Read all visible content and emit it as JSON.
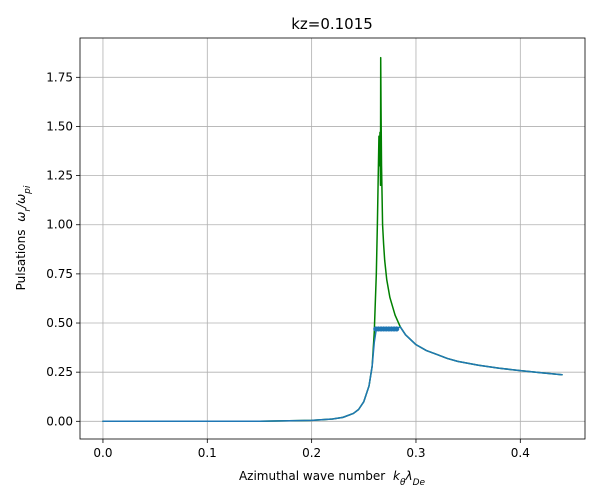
{
  "chart_data": {
    "type": "line",
    "title": "kz=0.1015",
    "xlabel": "Azimuthal wave number",
    "xlabel_math": "kθλDe",
    "ylabel": "Pulsations",
    "ylabel_math": "ωr/ωpi",
    "xlim": [
      -0.022,
      0.462
    ],
    "ylim": [
      -0.09,
      1.95
    ],
    "grid": true,
    "xticks": [
      0.0,
      0.1,
      0.2,
      0.3,
      0.4
    ],
    "xtick_labels": [
      "0.0",
      "0.1",
      "0.2",
      "0.3",
      "0.4"
    ],
    "yticks": [
      0.0,
      0.25,
      0.5,
      0.75,
      1.0,
      1.25,
      1.5,
      1.75
    ],
    "ytick_labels": [
      "0.00",
      "0.25",
      "0.50",
      "0.75",
      "1.00",
      "1.25",
      "1.50",
      "1.75"
    ],
    "series": [
      {
        "color": "#008000",
        "style": "line",
        "x": [
          0.0,
          0.05,
          0.1,
          0.15,
          0.2,
          0.22,
          0.23,
          0.24,
          0.245,
          0.25,
          0.255,
          0.258,
          0.26,
          0.262,
          0.263,
          0.264,
          0.2645,
          0.265,
          0.2655,
          0.266,
          0.2662,
          0.2665,
          0.267,
          0.2675,
          0.268,
          0.269,
          0.27,
          0.272,
          0.275,
          0.28,
          0.285,
          0.29,
          0.3,
          0.31,
          0.32,
          0.33,
          0.34,
          0.36,
          0.38,
          0.4,
          0.42,
          0.44
        ],
        "y": [
          0.0,
          0.0,
          0.0,
          0.0,
          0.005,
          0.012,
          0.02,
          0.04,
          0.06,
          0.1,
          0.18,
          0.28,
          0.45,
          0.75,
          1.0,
          1.3,
          1.45,
          1.3,
          1.47,
          1.2,
          1.85,
          1.6,
          1.3,
          1.15,
          1.0,
          0.9,
          0.82,
          0.72,
          0.63,
          0.54,
          0.48,
          0.44,
          0.39,
          0.36,
          0.34,
          0.32,
          0.305,
          0.285,
          0.27,
          0.258,
          0.247,
          0.237
        ]
      },
      {
        "color": "#1f77b4",
        "style": "line",
        "x": [
          0.0,
          0.05,
          0.1,
          0.15,
          0.2,
          0.22,
          0.23,
          0.24,
          0.245,
          0.25,
          0.255,
          0.258,
          0.26,
          0.262,
          0.264,
          0.266,
          0.268,
          0.27,
          0.272,
          0.275,
          0.278,
          0.28,
          0.282,
          0.285,
          0.29,
          0.3,
          0.31,
          0.32,
          0.33,
          0.34,
          0.36,
          0.38,
          0.4,
          0.42,
          0.44
        ],
        "y": [
          0.0,
          0.0,
          0.0,
          0.0,
          0.005,
          0.012,
          0.02,
          0.04,
          0.06,
          0.1,
          0.18,
          0.28,
          0.4,
          0.47,
          0.47,
          0.47,
          0.47,
          0.47,
          0.47,
          0.47,
          0.47,
          0.47,
          0.475,
          0.48,
          0.44,
          0.39,
          0.36,
          0.34,
          0.32,
          0.305,
          0.285,
          0.27,
          0.258,
          0.247,
          0.237
        ]
      },
      {
        "color": "#1f77b4",
        "style": "markers",
        "x": [
          0.2615,
          0.264,
          0.2665,
          0.269,
          0.2715,
          0.274,
          0.2765,
          0.279,
          0.2815
        ],
        "y": [
          0.47,
          0.47,
          0.47,
          0.47,
          0.47,
          0.47,
          0.47,
          0.47,
          0.47
        ]
      }
    ]
  }
}
